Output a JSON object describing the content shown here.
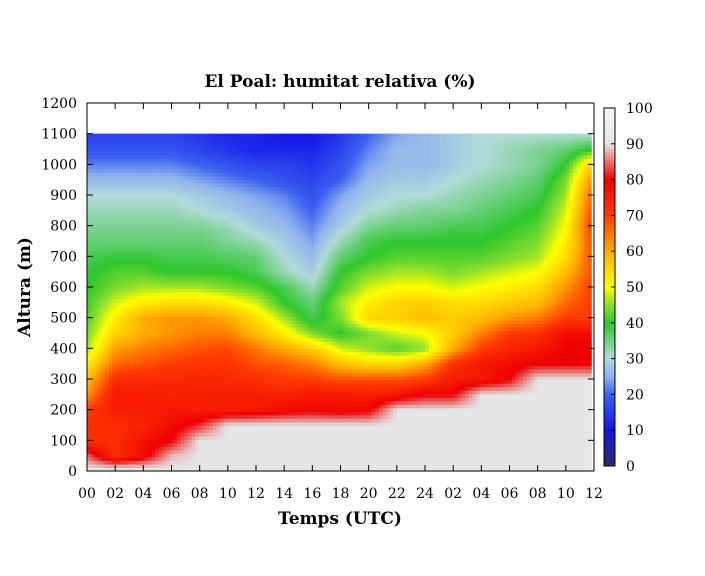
{
  "chart_data": {
    "type": "heatmap",
    "title": "El Poal: humitat relativa (%)",
    "xlabel": "Temps (UTC)",
    "ylabel": "Altura (m)",
    "x_tick_labels": [
      "00",
      "02",
      "04",
      "06",
      "08",
      "10",
      "12",
      "14",
      "16",
      "18",
      "20",
      "22",
      "24",
      "02",
      "04",
      "06",
      "08",
      "10",
      "12"
    ],
    "x_range_hours": [
      0,
      36
    ],
    "ylim": [
      0,
      1200
    ],
    "y_ticks": [
      0,
      100,
      200,
      300,
      400,
      500,
      600,
      700,
      800,
      900,
      1000,
      1100,
      1200
    ],
    "colorbar": {
      "range": [
        0,
        100
      ],
      "ticks": [
        0,
        10,
        20,
        30,
        40,
        50,
        60,
        70,
        80,
        90,
        100
      ],
      "colors": [
        "#2a2a66",
        "#1515e8",
        "#3b62f0",
        "#8fb2ee",
        "#b3dada",
        "#2ec72e",
        "#8ce02c",
        "#ffff00",
        "#ffad00",
        "#ff3a00",
        "#ef0000",
        "#e6e6e6",
        "#f6f6f6"
      ],
      "color_stops": [
        0,
        10,
        20,
        25,
        30,
        40,
        45,
        50,
        60,
        70,
        80,
        90,
        100
      ]
    },
    "data_x_hours": [
      0,
      2,
      4,
      6,
      8,
      10,
      12,
      14,
      16,
      18,
      20,
      22,
      24,
      26,
      28,
      30,
      32,
      34,
      35.8
    ],
    "data_y_heights": [
      10,
      50,
      100,
      150,
      200,
      250,
      300,
      350,
      400,
      450,
      500,
      550,
      600,
      650,
      700,
      750,
      800,
      850,
      900,
      950,
      1000,
      1050,
      1100
    ],
    "rh_percent": [
      [
        90,
        90,
        90,
        90,
        90,
        90,
        90,
        90,
        90,
        90,
        90,
        90,
        90,
        90,
        90,
        90,
        90,
        90,
        90
      ],
      [
        85,
        72,
        78,
        88,
        90,
        90,
        90,
        90,
        90,
        90,
        90,
        90,
        90,
        90,
        90,
        90,
        90,
        90,
        90
      ],
      [
        72,
        72,
        77,
        80,
        90,
        90,
        90,
        90,
        90,
        90,
        90,
        90,
        90,
        90,
        90,
        90,
        90,
        90,
        90
      ],
      [
        72,
        72,
        74,
        78,
        82,
        90,
        90,
        90,
        90,
        90,
        90,
        90,
        90,
        90,
        90,
        90,
        90,
        90,
        90
      ],
      [
        70,
        75,
        75,
        76,
        75,
        75,
        76,
        78,
        79,
        78,
        79,
        90,
        90,
        90,
        90,
        90,
        90,
        90,
        90
      ],
      [
        62,
        76,
        75,
        74,
        75,
        75,
        75,
        74,
        76,
        76,
        75,
        76,
        80,
        80,
        90,
        90,
        90,
        90,
        90
      ],
      [
        58,
        72,
        73,
        73,
        73,
        73,
        72,
        70,
        70,
        68,
        68,
        68,
        70,
        75,
        76,
        80,
        90,
        90,
        90
      ],
      [
        52,
        66,
        68,
        70,
        71,
        71,
        68,
        67,
        64,
        58,
        55,
        55,
        60,
        72,
        76,
        78,
        80,
        80,
        80
      ],
      [
        46,
        61,
        64,
        66,
        68,
        69,
        65,
        60,
        56,
        48,
        45,
        42,
        45,
        60,
        70,
        74,
        76,
        80,
        80
      ],
      [
        44,
        55,
        60,
        62,
        64,
        64,
        58,
        52,
        44,
        40,
        44,
        48,
        50,
        56,
        64,
        70,
        72,
        78,
        78
      ],
      [
        42,
        52,
        60,
        62,
        62,
        60,
        54,
        46,
        38,
        44,
        55,
        56,
        58,
        56,
        58,
        62,
        64,
        70,
        70
      ],
      [
        41,
        48,
        52,
        54,
        54,
        52,
        48,
        40,
        36,
        46,
        52,
        55,
        56,
        54,
        54,
        56,
        58,
        66,
        70
      ],
      [
        40,
        44,
        46,
        46,
        46,
        44,
        42,
        38,
        32,
        42,
        48,
        50,
        50,
        48,
        50,
        52,
        54,
        62,
        70
      ],
      [
        39,
        42,
        42,
        40,
        40,
        40,
        38,
        32,
        28,
        40,
        44,
        46,
        46,
        44,
        46,
        48,
        50,
        58,
        68
      ],
      [
        38,
        39,
        39,
        38,
        38,
        37,
        36,
        30,
        26,
        36,
        40,
        42,
        42,
        42,
        42,
        44,
        46,
        54,
        68
      ],
      [
        36,
        36,
        36,
        36,
        36,
        34,
        32,
        28,
        24,
        32,
        38,
        40,
        40,
        40,
        40,
        42,
        44,
        52,
        68
      ],
      [
        34,
        34,
        34,
        34,
        34,
        32,
        28,
        26,
        22,
        28,
        34,
        36,
        36,
        38,
        38,
        40,
        42,
        50,
        70
      ],
      [
        32,
        32,
        32,
        32,
        30,
        28,
        26,
        24,
        20,
        26,
        30,
        32,
        34,
        34,
        36,
        38,
        40,
        48,
        68
      ],
      [
        30,
        30,
        30,
        30,
        28,
        26,
        24,
        22,
        18,
        24,
        28,
        30,
        30,
        32,
        34,
        36,
        38,
        46,
        66
      ],
      [
        26,
        26,
        26,
        26,
        24,
        22,
        20,
        18,
        16,
        20,
        26,
        28,
        28,
        30,
        32,
        34,
        36,
        44,
        62
      ],
      [
        22,
        22,
        22,
        22,
        20,
        18,
        16,
        16,
        14,
        18,
        24,
        26,
        26,
        28,
        30,
        32,
        34,
        40,
        56
      ],
      [
        18,
        18,
        18,
        18,
        16,
        14,
        12,
        12,
        12,
        16,
        22,
        26,
        26,
        28,
        30,
        32,
        34,
        36,
        40
      ],
      [
        16,
        16,
        16,
        16,
        14,
        12,
        12,
        10,
        10,
        14,
        20,
        24,
        26,
        28,
        30,
        30,
        30,
        30,
        30
      ]
    ]
  }
}
